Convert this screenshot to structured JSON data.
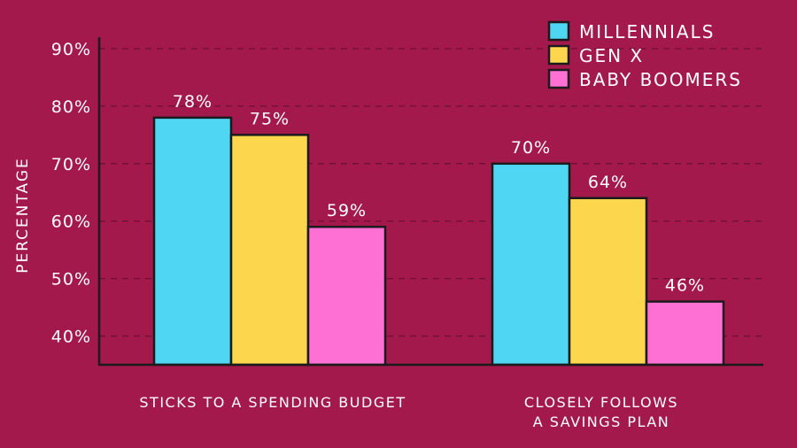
{
  "chart_data": {
    "type": "bar",
    "title": "",
    "ylabel": "PERCENTAGE",
    "xlabel": "",
    "ylim": [
      35,
      92
    ],
    "yticks": [
      40,
      50,
      60,
      70,
      80,
      90
    ],
    "ytick_labels": [
      "40%",
      "50%",
      "60%",
      "70%",
      "80%",
      "90%"
    ],
    "grid": true,
    "legend": "top-right",
    "categories": [
      [
        "STICKS TO A SPENDING BUDGET"
      ],
      [
        "CLOSELY FOLLOWS",
        "A SAVINGS PLAN"
      ]
    ],
    "series": [
      {
        "name": "MILLENNIALS",
        "color": "#4fd6f2",
        "values": [
          78,
          70
        ],
        "labels": [
          "78%",
          "70%"
        ]
      },
      {
        "name": "GEN X",
        "color": "#fcd74e",
        "values": [
          75,
          64
        ],
        "labels": [
          "75%",
          "64%"
        ]
      },
      {
        "name": "BABY BOOMERS",
        "color": "#ff70d4",
        "values": [
          59,
          46
        ],
        "labels": [
          "59%",
          "46%"
        ]
      }
    ]
  }
}
